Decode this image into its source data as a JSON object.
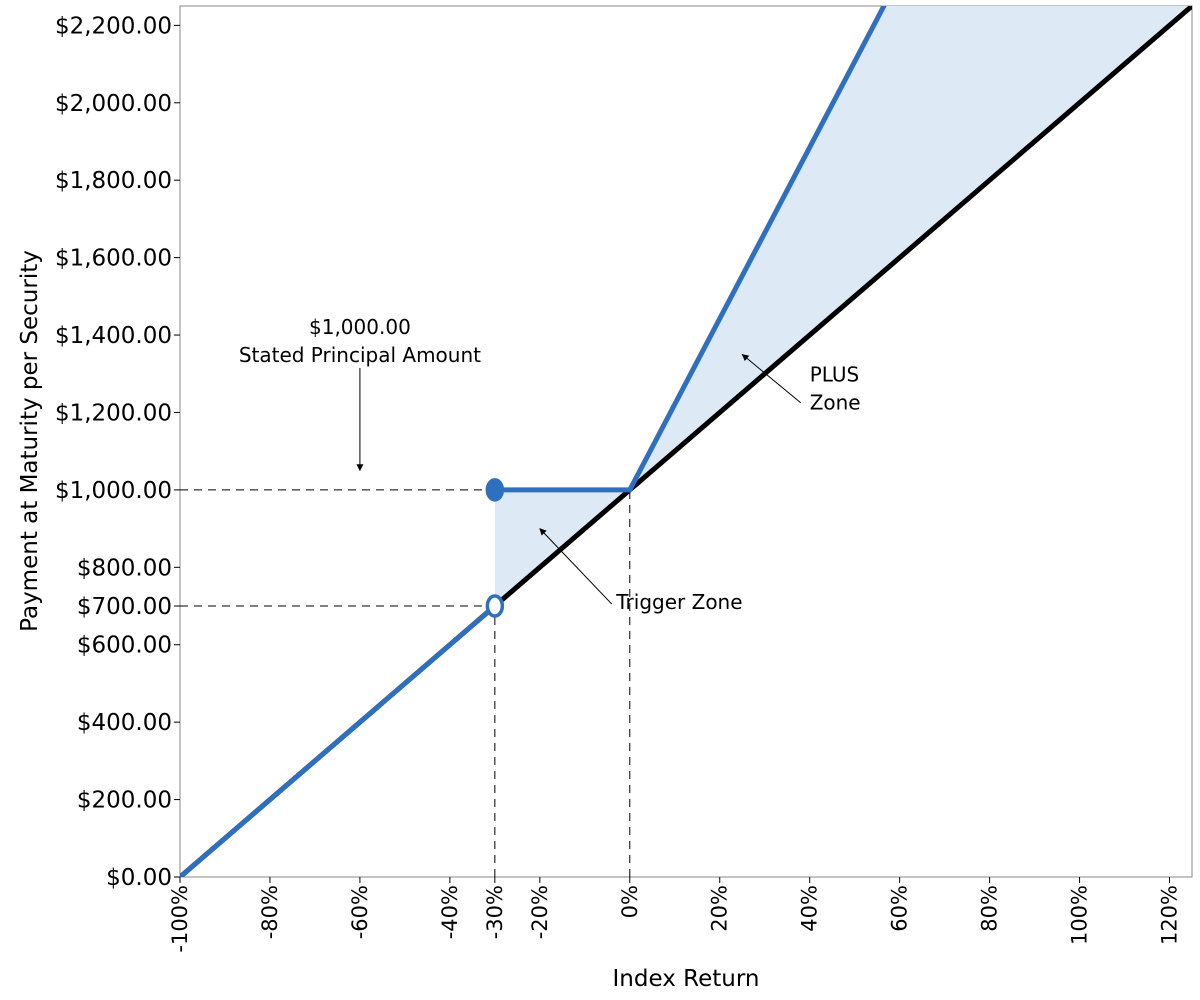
{
  "chart_data": {
    "type": "line",
    "xlabel": "Index Return",
    "ylabel": "Payment at Maturity per Security",
    "xlim": [
      -100,
      125
    ],
    "ylim": [
      0,
      2250
    ],
    "x_ticks": [
      {
        "value": -100,
        "label": "-100%"
      },
      {
        "value": -80,
        "label": "-80%"
      },
      {
        "value": -60,
        "label": "-60%"
      },
      {
        "value": -40,
        "label": "-40%"
      },
      {
        "value": -30,
        "label": "-30%"
      },
      {
        "value": -20,
        "label": "-20%"
      },
      {
        "value": 0,
        "label": "0%"
      },
      {
        "value": 20,
        "label": "20%"
      },
      {
        "value": 40,
        "label": "40%"
      },
      {
        "value": 60,
        "label": "60%"
      },
      {
        "value": 80,
        "label": "80%"
      },
      {
        "value": 100,
        "label": "100%"
      },
      {
        "value": 120,
        "label": "120%"
      }
    ],
    "y_ticks": [
      {
        "value": 0,
        "label": "$0.00"
      },
      {
        "value": 200,
        "label": "$200.00"
      },
      {
        "value": 400,
        "label": "$400.00"
      },
      {
        "value": 600,
        "label": "$600.00"
      },
      {
        "value": 700,
        "label": "$700.00"
      },
      {
        "value": 800,
        "label": "$800.00"
      },
      {
        "value": 1000,
        "label": "$1,000.00"
      },
      {
        "value": 1200,
        "label": "$1,200.00"
      },
      {
        "value": 1400,
        "label": "$1,400.00"
      },
      {
        "value": 1600,
        "label": "$1,600.00"
      },
      {
        "value": 1800,
        "label": "$1,800.00"
      },
      {
        "value": 2000,
        "label": "$2,000.00"
      },
      {
        "value": 2200,
        "label": "$2,200.00"
      }
    ],
    "series": [
      {
        "color": "#000000",
        "points": [
          [
            -100,
            0
          ],
          [
            125,
            2250
          ]
        ]
      },
      {
        "color": "#2e6fc0",
        "segments": [
          [
            [
              -100,
              0
            ],
            [
              -30,
              700
            ]
          ],
          [
            [
              -30,
              1000
            ],
            [
              0,
              1000
            ]
          ],
          [
            [
              0,
              1000
            ],
            [
              56.5,
              2250
            ]
          ]
        ]
      }
    ],
    "markers": [
      {
        "x": -30,
        "y": 1000,
        "style": "filled"
      },
      {
        "x": -30,
        "y": 700,
        "style": "open"
      }
    ],
    "reference_lines": [
      {
        "from": [
          -100,
          1000
        ],
        "to": [
          0,
          1000
        ]
      },
      {
        "from": [
          -100,
          700
        ],
        "to": [
          -30,
          700
        ]
      },
      {
        "from": [
          -30,
          0
        ],
        "to": [
          -30,
          700
        ]
      },
      {
        "from": [
          0,
          0
        ],
        "to": [
          0,
          1000
        ]
      }
    ],
    "shaded_regions": [
      {
        "fill": "#ddeaf5",
        "polygon": [
          [
            -30,
            700
          ],
          [
            -30,
            1000
          ],
          [
            0,
            1000
          ]
        ]
      },
      {
        "fill": "#ddeaf5",
        "polygon": [
          [
            0,
            1000
          ],
          [
            56.5,
            2250
          ],
          [
            125,
            2250
          ]
        ]
      }
    ],
    "annotations": [
      {
        "lines": [
          "$1,000.00",
          "Stated Principal Amount"
        ],
        "text_at": [
          -60,
          1403
        ],
        "arrow_from": [
          -60,
          1315
        ],
        "arrow_to": [
          -60,
          1050
        ]
      },
      {
        "lines": [
          "Trigger Zone"
        ],
        "text_at": [
          -3,
          692
        ],
        "arrow_from": [
          -4,
          705
        ],
        "arrow_to": [
          -20,
          900
        ]
      },
      {
        "lines": [
          "PLUS",
          "Zone"
        ],
        "text_at": [
          40,
          1280
        ],
        "arrow_from": [
          38,
          1225
        ],
        "arrow_to": [
          25,
          1350
        ]
      }
    ],
    "colors": {
      "accent": "#2e6fc0",
      "baseline": "#000000",
      "shade": "#ddeaf5"
    }
  }
}
